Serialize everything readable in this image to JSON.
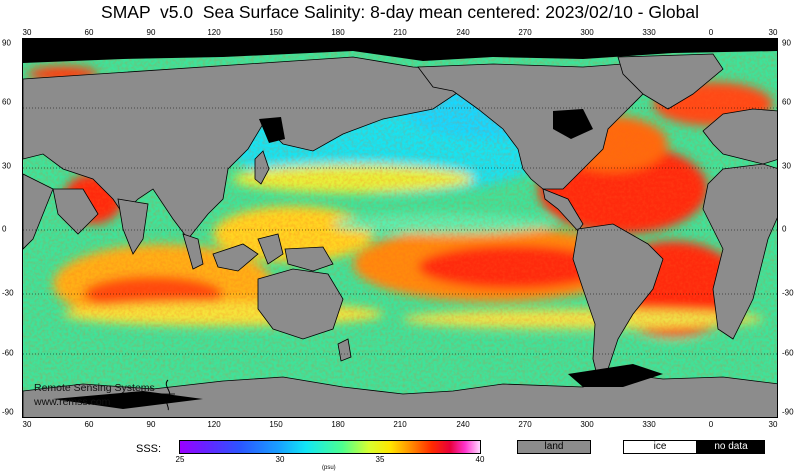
{
  "title": "SMAP  v5.0  Sea Surface Salinity: 8-day mean centered: 2023/02/10 - Global",
  "lon_ticks": [
    "30",
    "60",
    "90",
    "120",
    "150",
    "180",
    "210",
    "240",
    "270",
    "300",
    "330",
    "0",
    "30"
  ],
  "lat_ticks": [
    "90",
    "60",
    "30",
    "0",
    "-30",
    "-60",
    "-90"
  ],
  "credit": {
    "line1": "Remote Sensing Systems",
    "line2": "www.remss.com"
  },
  "legend": {
    "label": "SSS:",
    "ticks": [
      "25",
      "30",
      "35",
      "40"
    ],
    "unit": "(psu)",
    "land": "land",
    "ice": "ice",
    "nodata": "no data"
  },
  "colors": {
    "land": "#8c8c8c",
    "ice": "#ffffff",
    "nodata": "#000000"
  }
}
